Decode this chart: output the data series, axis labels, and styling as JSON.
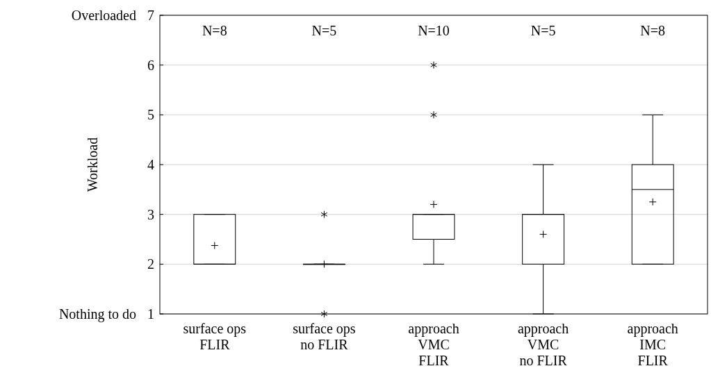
{
  "chart_data": {
    "type": "box",
    "ylabel": "Workload",
    "categories": [
      "surface ops\nFLIR",
      "surface ops\nno FLIR",
      "approach\nVMC\nFLIR",
      "approach\nVMC\nno FLIR",
      "approach\nIMC\nFLIR"
    ],
    "boxes": [
      {
        "low": 2,
        "q1": 2,
        "median": 2,
        "q3": 3,
        "high": 3,
        "mean": 2.375
      },
      {
        "low": 2,
        "q1": 2,
        "median": 2,
        "q3": 2,
        "high": 2,
        "mean": 2,
        "outliers": [
          3,
          1
        ]
      },
      {
        "low": 2,
        "q1": 2.5,
        "median": 3,
        "q3": 3,
        "high": 3,
        "mean": 3.2,
        "outliers": [
          5,
          6
        ]
      },
      {
        "low": 1,
        "q1": 2,
        "median": 3,
        "q3": 3,
        "high": 4,
        "mean": 2.6
      },
      {
        "low": 2,
        "q1": 2,
        "median": 3.5,
        "q3": 4,
        "high": 5,
        "mean": 3.25
      }
    ],
    "color": "#000000",
    "ylim": [
      1,
      7
    ],
    "yticks": [
      1,
      2,
      3,
      4,
      5,
      6,
      7
    ],
    "grid": "y",
    "annotations": [
      "Overloaded",
      "Nothing to do",
      "N=8",
      "N=5",
      "N=10",
      "N=5",
      "N=8"
    ]
  }
}
